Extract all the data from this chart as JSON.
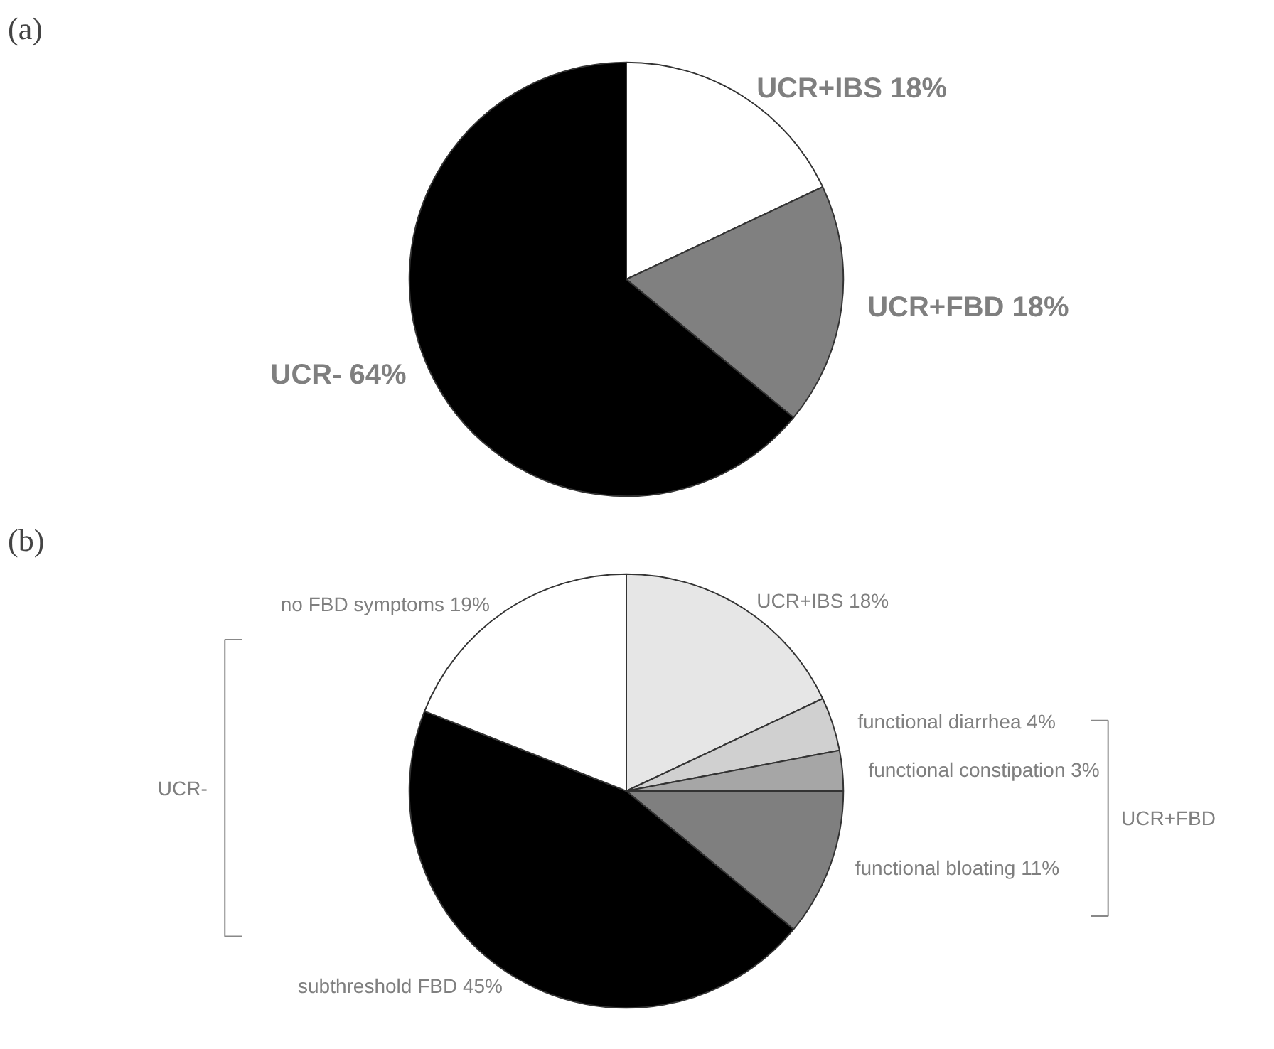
{
  "chart_data": [
    {
      "type": "pie",
      "title": "(a)",
      "categories": [
        "UCR+IBS 18%",
        "UCR+FBD 18%",
        "UCR- 64%"
      ],
      "values": [
        18,
        18,
        64
      ],
      "colors": [
        "#ffffff",
        "#808080",
        "#000000"
      ]
    },
    {
      "type": "pie",
      "title": "(b)",
      "categories": [
        "UCR+IBS 18%",
        "functional diarrhea 4%",
        "functional constipation 3%",
        "functional bloating 11%",
        "subthreshold FBD 45%",
        "no FBD symptoms 19%"
      ],
      "values": [
        18,
        4,
        3,
        11,
        45,
        19
      ],
      "colors": [
        "#e6e6e6",
        "#d0d0d0",
        "#a6a6a6",
        "#7f7f7f",
        "#000000",
        "#ffffff"
      ],
      "annotations": [
        "UCR-",
        "UCR+FBD"
      ]
    }
  ]
}
